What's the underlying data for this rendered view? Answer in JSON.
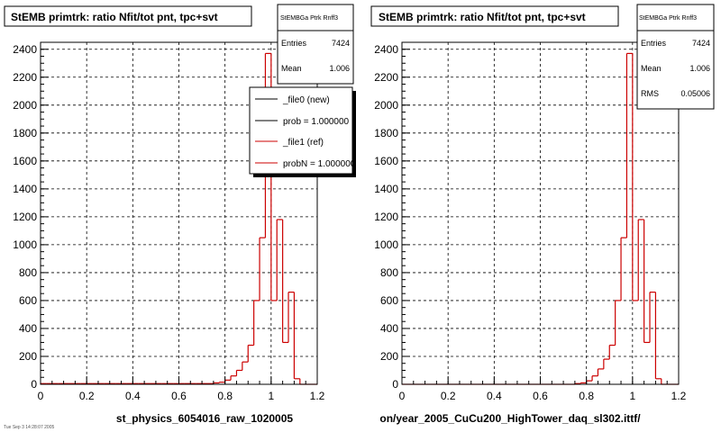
{
  "colors": {
    "background": "#ffffff",
    "frame": "#000000",
    "grid": "#000000",
    "new_series": "#000000",
    "ref_series": "#cc0000"
  },
  "chart_data": [
    {
      "type": "histogram",
      "title": "StEMB primtrk: ratio Nfit/tot pnt, tpc+svt",
      "xlabel": "st_physics_6054016_raw_1020005",
      "ylabel": "",
      "xlim": [
        0,
        1.2
      ],
      "ylim": [
        0,
        2450
      ],
      "xticks": [
        "0",
        "0.2",
        "0.4",
        "0.6",
        "0.8",
        "1",
        "1.2"
      ],
      "yticks": [
        "0",
        "200",
        "400",
        "600",
        "800",
        "1000",
        "1200",
        "1400",
        "1600",
        "1800",
        "2000",
        "2200",
        "2400"
      ],
      "grid": true,
      "stats": {
        "name": "StEMBGa Ptrk Rnff3",
        "entries_label": "Entries",
        "entries": "7424",
        "mean_label": "Mean",
        "mean": "1.006"
      },
      "legend": [
        {
          "label": "_file0 (new)",
          "color": "#000000"
        },
        {
          "label": "prob = 1.000000",
          "color": "#000000"
        },
        {
          "label": "_file1 (ref)",
          "color": "#cc0000"
        },
        {
          "label": "probN = 1.000000",
          "color": "#cc0000"
        }
      ],
      "bins": {
        "edges": [
          0.0,
          0.025,
          0.05,
          0.075,
          0.1,
          0.125,
          0.15,
          0.175,
          0.2,
          0.225,
          0.25,
          0.275,
          0.3,
          0.325,
          0.35,
          0.375,
          0.4,
          0.425,
          0.45,
          0.475,
          0.5,
          0.525,
          0.55,
          0.575,
          0.6,
          0.625,
          0.65,
          0.675,
          0.7,
          0.725,
          0.75,
          0.775,
          0.8,
          0.825,
          0.85,
          0.875,
          0.9,
          0.925,
          0.95,
          0.975,
          1.0,
          1.025,
          1.05,
          1.075,
          1.1,
          1.125,
          1.15,
          1.175,
          1.2
        ],
        "counts": [
          5,
          5,
          5,
          5,
          5,
          5,
          5,
          5,
          5,
          5,
          5,
          5,
          5,
          5,
          5,
          5,
          5,
          5,
          5,
          5,
          5,
          5,
          5,
          5,
          5,
          5,
          5,
          5,
          5,
          5,
          10,
          15,
          30,
          60,
          100,
          160,
          280,
          600,
          1050,
          2370,
          600,
          1180,
          300,
          660,
          40,
          0,
          0,
          0
        ]
      },
      "series": [
        {
          "name": "_file0 (new)",
          "color": "#000000"
        },
        {
          "name": "_file1 (ref)",
          "color": "#cc0000"
        }
      ]
    },
    {
      "type": "histogram",
      "title": "StEMB primtrk: ratio Nfit/tot pnt, tpc+svt",
      "xlabel": "on/year_2005_CuCu200_HighTower_daq_sl302.ittf/",
      "ylabel": "",
      "xlim": [
        0,
        1.2
      ],
      "ylim": [
        0,
        2450
      ],
      "xticks": [
        "0",
        "0.2",
        "0.4",
        "0.6",
        "0.8",
        "1",
        "1.2"
      ],
      "yticks": [
        "0",
        "200",
        "400",
        "600",
        "800",
        "1000",
        "1200",
        "1400",
        "1600",
        "1800",
        "2000",
        "2200",
        "2400"
      ],
      "grid": true,
      "stats": {
        "name": "StEMBGa Ptrk Rnff3",
        "entries_label": "Entries",
        "entries": "7424",
        "mean_label": "Mean",
        "mean": "1.006",
        "rms_label": "RMS",
        "rms": "0.05006"
      },
      "bins": {
        "edges": [
          0.0,
          0.025,
          0.05,
          0.075,
          0.1,
          0.125,
          0.15,
          0.175,
          0.2,
          0.225,
          0.25,
          0.275,
          0.3,
          0.325,
          0.35,
          0.375,
          0.4,
          0.425,
          0.45,
          0.475,
          0.5,
          0.525,
          0.55,
          0.575,
          0.6,
          0.625,
          0.65,
          0.675,
          0.7,
          0.725,
          0.75,
          0.775,
          0.8,
          0.825,
          0.85,
          0.875,
          0.9,
          0.925,
          0.95,
          0.975,
          1.0,
          1.025,
          1.05,
          1.075,
          1.1,
          1.125,
          1.15,
          1.175,
          1.2
        ],
        "counts": [
          0,
          0,
          0,
          0,
          0,
          0,
          0,
          0,
          0,
          0,
          0,
          0,
          0,
          0,
          0,
          0,
          0,
          0,
          0,
          0,
          0,
          0,
          0,
          0,
          0,
          0,
          0,
          0,
          0,
          0,
          5,
          10,
          25,
          60,
          110,
          180,
          280,
          600,
          1050,
          2370,
          600,
          1180,
          300,
          660,
          40,
          0,
          0,
          0
        ]
      },
      "series": [
        {
          "name": "",
          "color": "#cc0000"
        }
      ]
    }
  ],
  "footer": {
    "note": "Tue Sep 3 14:28:07 2005"
  }
}
